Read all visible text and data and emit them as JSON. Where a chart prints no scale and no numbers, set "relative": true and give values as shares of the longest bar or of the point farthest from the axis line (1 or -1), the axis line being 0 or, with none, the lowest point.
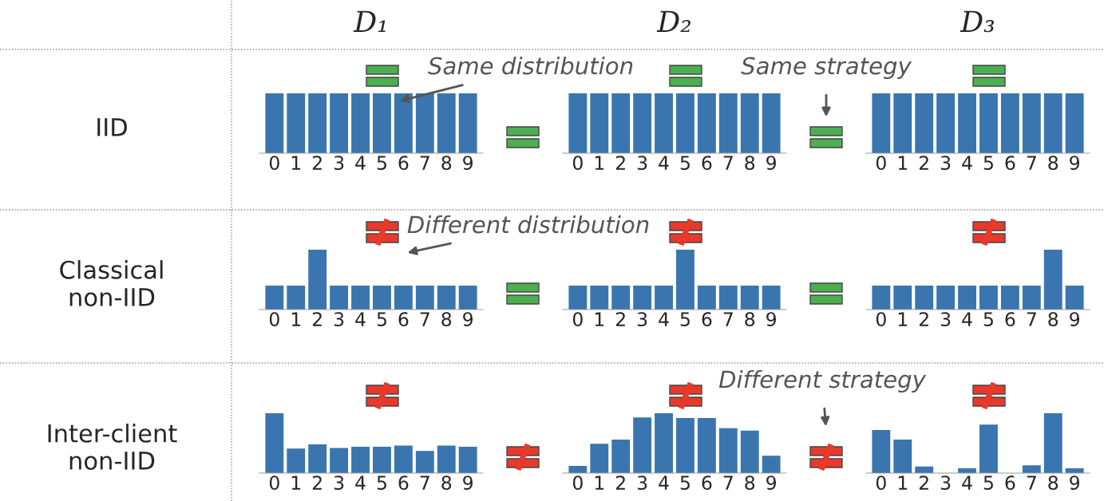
{
  "chart_data": [
    {
      "type": "bar",
      "title": "D₁",
      "ylabel": "IID",
      "categories": [
        "0",
        "1",
        "2",
        "3",
        "4",
        "5",
        "6",
        "7",
        "8",
        "9"
      ],
      "values": [
        1,
        1,
        1,
        1,
        1,
        1,
        1,
        1,
        1,
        1
      ],
      "color": "#3a75b0",
      "relative": true,
      "tick_labels": "x",
      "annotations": [
        "Same distribution"
      ]
    },
    {
      "type": "bar",
      "title": "D₂",
      "categories": [
        "0",
        "1",
        "2",
        "3",
        "4",
        "5",
        "6",
        "7",
        "8",
        "9"
      ],
      "values": [
        1,
        1,
        1,
        1,
        1,
        1,
        1,
        1,
        1,
        1
      ],
      "color": "#3a75b0",
      "relative": true,
      "tick_labels": "x",
      "annotations": [
        "Same strategy"
      ]
    },
    {
      "type": "bar",
      "title": "D₃",
      "categories": [
        "0",
        "1",
        "2",
        "3",
        "4",
        "5",
        "6",
        "7",
        "8",
        "9"
      ],
      "values": [
        1,
        1,
        1,
        1,
        1,
        1,
        1,
        1,
        1,
        1
      ],
      "color": "#3a75b0",
      "relative": true,
      "tick_labels": "x"
    },
    {
      "type": "bar",
      "ylabel": "Classical\nnon-IID",
      "categories": [
        "0",
        "1",
        "2",
        "3",
        "4",
        "5",
        "6",
        "7",
        "8",
        "9"
      ],
      "values": [
        0.4,
        0.4,
        1,
        0.4,
        0.4,
        0.4,
        0.4,
        0.4,
        0.4,
        0.4
      ],
      "color": "#3a75b0",
      "relative": true,
      "tick_labels": "x",
      "annotations": [
        "Different distribution"
      ]
    },
    {
      "type": "bar",
      "categories": [
        "0",
        "1",
        "2",
        "3",
        "4",
        "5",
        "6",
        "7",
        "8",
        "9"
      ],
      "values": [
        0.4,
        0.4,
        0.4,
        0.4,
        0.4,
        1,
        0.4,
        0.4,
        0.4,
        0.4
      ],
      "color": "#3a75b0",
      "relative": true,
      "tick_labels": "x"
    },
    {
      "type": "bar",
      "categories": [
        "0",
        "1",
        "2",
        "3",
        "4",
        "5",
        "6",
        "7",
        "8",
        "9"
      ],
      "values": [
        0.4,
        0.4,
        0.4,
        0.4,
        0.4,
        0.4,
        0.4,
        0.4,
        1,
        0.4
      ],
      "color": "#3a75b0",
      "relative": true,
      "tick_labels": "x"
    },
    {
      "type": "bar",
      "ylabel": "Inter-client\nnon-IID",
      "categories": [
        "0",
        "1",
        "2",
        "3",
        "4",
        "5",
        "6",
        "7",
        "8",
        "9"
      ],
      "values": [
        1,
        0.41,
        0.48,
        0.42,
        0.44,
        0.44,
        0.46,
        0.37,
        0.46,
        0.44
      ],
      "color": "#3a75b0",
      "relative": true,
      "tick_labels": "x"
    },
    {
      "type": "bar",
      "categories": [
        "0",
        "1",
        "2",
        "3",
        "4",
        "5",
        "6",
        "7",
        "8",
        "9"
      ],
      "values": [
        0.12,
        0.49,
        0.56,
        0.93,
        1,
        0.92,
        0.92,
        0.75,
        0.71,
        0.29
      ],
      "color": "#3a75b0",
      "relative": true,
      "tick_labels": "x",
      "annotations": [
        "Different strategy"
      ]
    },
    {
      "type": "bar",
      "categories": [
        "0",
        "1",
        "2",
        "3",
        "4",
        "5",
        "6",
        "7",
        "8",
        "9"
      ],
      "values": [
        0.72,
        0.56,
        0.11,
        0,
        0.08,
        0.81,
        0,
        0.13,
        1,
        0.08
      ],
      "color": "#3a75b0",
      "relative": true,
      "tick_labels": "x"
    }
  ]
}
